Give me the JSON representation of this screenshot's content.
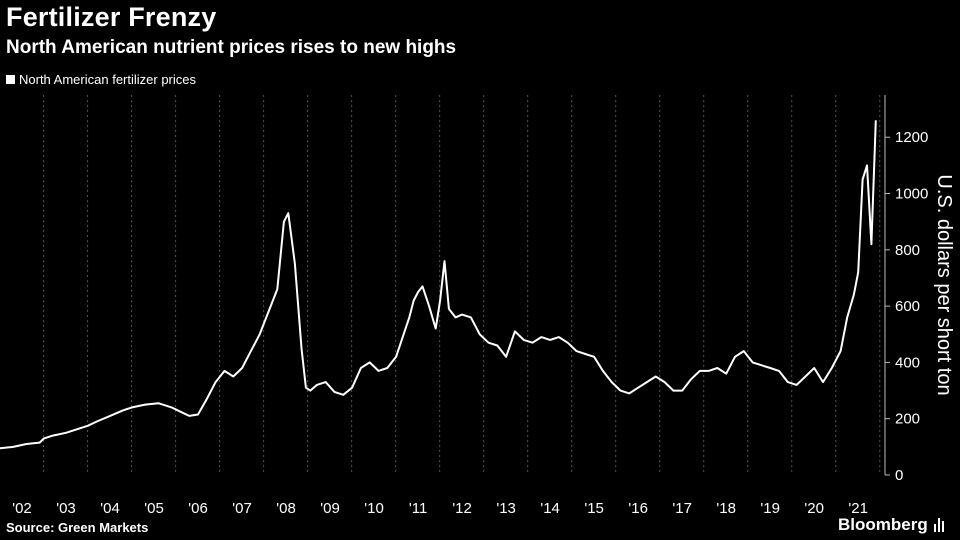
{
  "header": {
    "title": "Fertilizer Frenzy",
    "subtitle": "North American nutrient prices rises to new highs"
  },
  "footer": {
    "source": "Source: Green Markets",
    "brand": "Bloomberg"
  },
  "colors": {
    "background": "#000000",
    "line": "#ffffff",
    "grid": "#555555"
  },
  "chart_data": {
    "type": "line",
    "title": "Fertilizer Frenzy",
    "subtitle": "North American nutrient prices rises to new highs",
    "ylabel": "U.S. dollars per short ton",
    "xlabel": "",
    "ylim": [
      0,
      1350
    ],
    "xlim": [
      2002.0,
      2021.95
    ],
    "yticks": [
      0,
      200,
      400,
      600,
      800,
      1000,
      1200
    ],
    "xtick_labels": [
      "'02",
      "'03",
      "'04",
      "'05",
      "'06",
      "'07",
      "'08",
      "'09",
      "'10",
      "'11",
      "'12",
      "'13",
      "'14",
      "'15",
      "'16",
      "'17",
      "'18",
      "'19",
      "'20",
      "'21"
    ],
    "legend": "top-left",
    "grid": "vertical-dashed",
    "series": [
      {
        "name": "North American fertilizer prices",
        "x": [
          2002.0,
          2002.3,
          2002.6,
          2002.9,
          2003.0,
          2003.2,
          2003.5,
          2003.8,
          2004.0,
          2004.2,
          2004.5,
          2004.8,
          2005.0,
          2005.3,
          2005.6,
          2005.9,
          2006.1,
          2006.3,
          2006.5,
          2006.7,
          2006.9,
          2007.1,
          2007.3,
          2007.5,
          2007.7,
          2007.9,
          2008.1,
          2008.3,
          2008.45,
          2008.55,
          2008.7,
          2008.85,
          2008.95,
          2009.05,
          2009.2,
          2009.4,
          2009.6,
          2009.8,
          2010.0,
          2010.2,
          2010.4,
          2010.6,
          2010.8,
          2011.0,
          2011.15,
          2011.3,
          2011.4,
          2011.5,
          2011.6,
          2011.75,
          2011.9,
          2012.0,
          2012.1,
          2012.2,
          2012.35,
          2012.5,
          2012.7,
          2012.9,
          2013.1,
          2013.3,
          2013.5,
          2013.7,
          2013.9,
          2014.1,
          2014.3,
          2014.5,
          2014.7,
          2014.9,
          2015.1,
          2015.3,
          2015.5,
          2015.7,
          2015.9,
          2016.1,
          2016.3,
          2016.5,
          2016.7,
          2016.9,
          2017.1,
          2017.3,
          2017.5,
          2017.7,
          2017.9,
          2018.1,
          2018.3,
          2018.5,
          2018.7,
          2018.9,
          2019.1,
          2019.3,
          2019.5,
          2019.7,
          2019.9,
          2020.1,
          2020.3,
          2020.5,
          2020.7,
          2020.9,
          2021.1,
          2021.25,
          2021.4,
          2021.5,
          2021.6,
          2021.7,
          2021.8,
          2021.9
        ],
        "y": [
          95,
          100,
          110,
          115,
          130,
          140,
          150,
          165,
          175,
          190,
          210,
          230,
          240,
          250,
          255,
          240,
          225,
          210,
          215,
          270,
          330,
          370,
          350,
          380,
          440,
          500,
          580,
          660,
          900,
          930,
          750,
          450,
          310,
          300,
          320,
          330,
          295,
          285,
          310,
          380,
          400,
          370,
          380,
          420,
          490,
          560,
          620,
          650,
          670,
          600,
          520,
          620,
          760,
          590,
          560,
          570,
          560,
          500,
          470,
          460,
          420,
          510,
          480,
          470,
          490,
          480,
          490,
          470,
          440,
          430,
          420,
          370,
          330,
          300,
          290,
          310,
          330,
          350,
          330,
          300,
          300,
          340,
          370,
          370,
          380,
          360,
          420,
          440,
          400,
          390,
          380,
          370,
          330,
          320,
          350,
          380,
          330,
          380,
          440,
          560,
          640,
          720,
          1050,
          1100,
          820,
          1260
        ]
      }
    ]
  }
}
